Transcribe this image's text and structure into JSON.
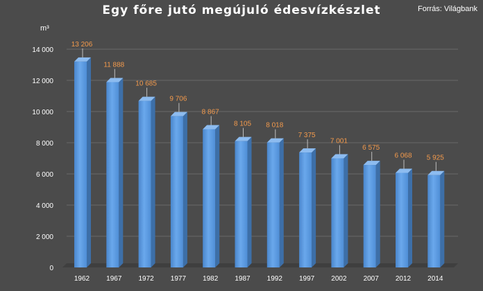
{
  "chart_data": {
    "type": "bar",
    "title": "Egy főre jutó megújuló édesvízkészlet",
    "source": "Forrás: Világbank",
    "ylabel": "m³",
    "ylim": [
      0,
      14000
    ],
    "yticks": [
      0,
      2000,
      4000,
      6000,
      8000,
      10000,
      12000,
      14000
    ],
    "ytick_labels": [
      "0",
      "2 000",
      "4 000",
      "6 000",
      "8 000",
      "10 000",
      "12 000",
      "14 000"
    ],
    "grid": true,
    "categories": [
      "1962",
      "1967",
      "1972",
      "1977",
      "1982",
      "1987",
      "1992",
      "1997",
      "2002",
      "2007",
      "2012",
      "2014"
    ],
    "values": [
      13206,
      11888,
      10685,
      9706,
      8867,
      8105,
      8018,
      7375,
      7001,
      6575,
      6068,
      5925
    ],
    "value_labels": [
      "13 206",
      "11 888",
      "10 685",
      "9 706",
      "8 867",
      "8 105",
      "8 018",
      "7 375",
      "7 001",
      "6 575",
      "6 068",
      "5 925"
    ],
    "colors": {
      "bar_front": "#5f9ee3",
      "bar_side": "#3d6fa8",
      "bar_top": "#8dbcf0",
      "data_label": "#f39a4c",
      "background": "#4b4b4b"
    }
  }
}
